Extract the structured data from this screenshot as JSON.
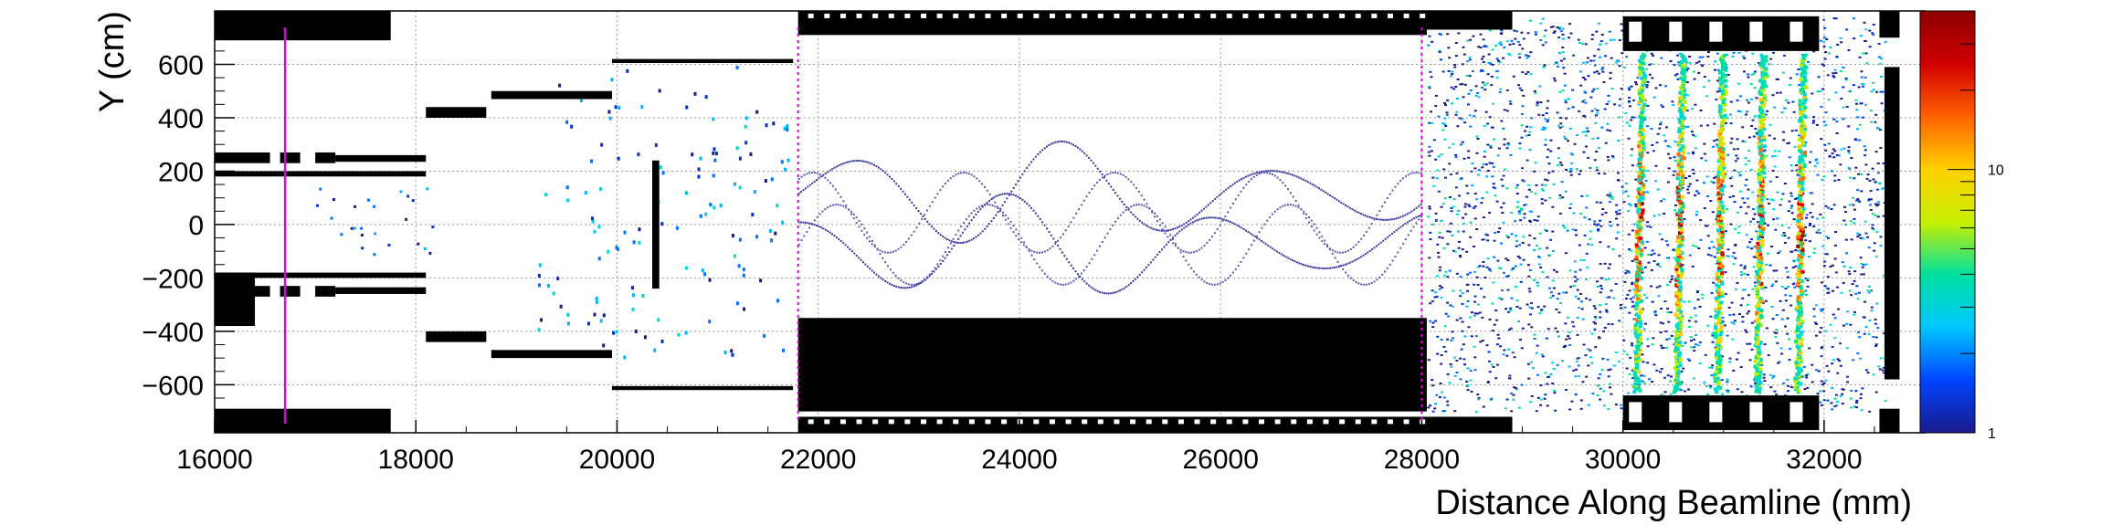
{
  "chart_data": {
    "type": "heatmap",
    "title": "",
    "xlabel": "Distance Along Beamline (mm)",
    "ylabel": "Y (cm)",
    "xlim": [
      16000,
      33000
    ],
    "ylim": [
      -780,
      800
    ],
    "x_ticks": [
      16000,
      18000,
      20000,
      22000,
      24000,
      26000,
      28000,
      30000,
      32000
    ],
    "x_tick_labels": [
      "16000",
      "18000",
      "20000",
      "22000",
      "24000",
      "26000",
      "28000",
      "30000",
      "32000"
    ],
    "y_ticks": [
      -600,
      -400,
      -200,
      0,
      200,
      400,
      600
    ],
    "y_tick_labels": [
      "−600",
      "−400",
      "−200",
      "0",
      "200",
      "400",
      "600"
    ],
    "grid": true,
    "colorbar": {
      "scale": "log",
      "range": [
        1,
        40
      ],
      "ticks": [
        1,
        10
      ],
      "tick_labels": [
        "1",
        "10"
      ],
      "colors": [
        "#1a1a8c",
        "#0044ff",
        "#00c8ff",
        "#00e0a0",
        "#c8f000",
        "#ffd000",
        "#ff6000",
        "#d00000",
        "#8c0000"
      ]
    },
    "marker_lines": {
      "solid_magenta_x": [
        16700
      ],
      "dashed_magenta_x": [
        21800,
        28000
      ],
      "color": "#e000e0"
    },
    "hot_bands_x": [
      30150,
      30550,
      30950,
      31350,
      31750
    ],
    "oscillating_tracks": {
      "x_range": [
        21800,
        28000
      ],
      "amplitude_cm": 200,
      "center_offsets_cm": [
        120,
        -80
      ]
    },
    "structures": [
      {
        "x0": 16000,
        "x1": 17750,
        "y0": 690,
        "y1": 800
      },
      {
        "x0": 16000,
        "x1": 17750,
        "y0": -780,
        "y1": -690
      },
      {
        "x0": 16000,
        "x1": 16400,
        "y0": -250,
        "y1": -180
      },
      {
        "x0": 16000,
        "x1": 16400,
        "y0": -380,
        "y1": -250
      },
      {
        "x0": 16000,
        "x1": 18100,
        "y0": 180,
        "y1": 200
      },
      {
        "x0": 16000,
        "x1": 18100,
        "y0": -200,
        "y1": -180
      },
      {
        "x0": 16000,
        "x1": 16300,
        "y0": 230,
        "y1": 270
      },
      {
        "x0": 16300,
        "x1": 16550,
        "y0": 230,
        "y1": 270
      },
      {
        "x0": 16650,
        "x1": 16850,
        "y0": 230,
        "y1": 270
      },
      {
        "x0": 17000,
        "x1": 17200,
        "y0": 230,
        "y1": 270
      },
      {
        "x0": 17200,
        "x1": 18100,
        "y0": 235,
        "y1": 260
      },
      {
        "x0": 16000,
        "x1": 16300,
        "y0": -270,
        "y1": -230
      },
      {
        "x0": 16300,
        "x1": 16550,
        "y0": -270,
        "y1": -230
      },
      {
        "x0": 16650,
        "x1": 16850,
        "y0": -270,
        "y1": -230
      },
      {
        "x0": 17000,
        "x1": 17200,
        "y0": -270,
        "y1": -230
      },
      {
        "x0": 17200,
        "x1": 18100,
        "y0": -260,
        "y1": -235
      },
      {
        "x0": 18100,
        "x1": 18700,
        "y0": 400,
        "y1": 440
      },
      {
        "x0": 18100,
        "x1": 18700,
        "y0": -440,
        "y1": -400
      },
      {
        "x0": 18750,
        "x1": 19950,
        "y0": 470,
        "y1": 500
      },
      {
        "x0": 18750,
        "x1": 19950,
        "y0": -500,
        "y1": -470
      },
      {
        "x0": 19950,
        "x1": 21750,
        "y0": 605,
        "y1": 620
      },
      {
        "x0": 19950,
        "x1": 21750,
        "y0": -620,
        "y1": -605
      },
      {
        "x0": 20350,
        "x1": 20420,
        "y0": -240,
        "y1": 240
      },
      {
        "x0": 21800,
        "x1": 28050,
        "y0": 710,
        "y1": 800
      },
      {
        "x0": 21800,
        "x1": 28050,
        "y0": -350,
        "y1": -700
      },
      {
        "x0": 21800,
        "x1": 28050,
        "y0": -720,
        "y1": -780
      },
      {
        "x0": 28050,
        "x1": 28900,
        "y0": 730,
        "y1": 800
      },
      {
        "x0": 28050,
        "x1": 28900,
        "y0": -720,
        "y1": -780
      },
      {
        "x0": 30000,
        "x1": 31950,
        "y0": 650,
        "y1": 780
      },
      {
        "x0": 30000,
        "x1": 31950,
        "y0": -770,
        "y1": -640
      },
      {
        "x0": 32550,
        "x1": 32750,
        "y0": 700,
        "y1": 800
      },
      {
        "x0": 32550,
        "x1": 32750,
        "y0": -780,
        "y1": -690
      },
      {
        "x0": 32600,
        "x1": 32750,
        "y0": -580,
        "y1": 590
      }
    ]
  }
}
